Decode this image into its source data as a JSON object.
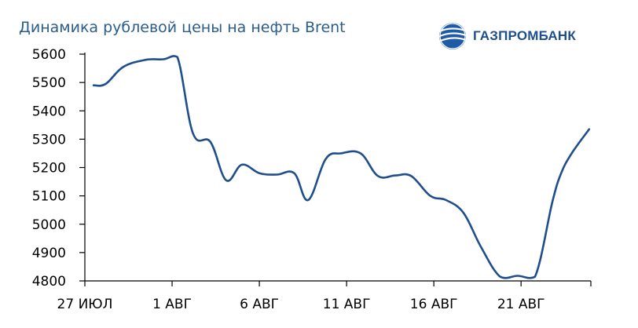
{
  "header": {
    "title": "Динамика рублевой цены на нефть Brent"
  },
  "brand": {
    "name": "ГАЗПРОМБАНК",
    "logo_icon": "gazprombank-logo-icon",
    "color": "#1f4e8c"
  },
  "colors": {
    "title": "#2a5d8a",
    "line": "#1f4e8c",
    "axis": "#000000"
  },
  "chart_data": {
    "type": "line",
    "title": "Динамика рублевой цены на нефть Brent",
    "xlabel": "",
    "ylabel": "",
    "xlim": [
      0,
      29
    ],
    "ylim": [
      4800,
      5600
    ],
    "yticks": [
      4800,
      4900,
      5000,
      5100,
      5200,
      5300,
      5400,
      5500,
      5600
    ],
    "xticks": [
      {
        "x": 0,
        "label": "27 ИЮЛ"
      },
      {
        "x": 5,
        "label": "1 АВГ"
      },
      {
        "x": 10,
        "label": "6 АВГ"
      },
      {
        "x": 15,
        "label": "11 АВГ"
      },
      {
        "x": 20,
        "label": "16 АВГ"
      },
      {
        "x": 25,
        "label": "21 АВГ"
      }
    ],
    "grid": false,
    "legend": "none",
    "series": [
      {
        "x": [
          0.5,
          1.2,
          2.2,
          3.5,
          4.5,
          5.3,
          6.2,
          7.2,
          8.1,
          9.0,
          10.0,
          11.0,
          12.0,
          12.8,
          13.8,
          14.7,
          15.8,
          16.8,
          17.8,
          18.7,
          19.8,
          20.7,
          21.7,
          22.7,
          23.8,
          24.8,
          25.8,
          26.8,
          27.3,
          27.9,
          28.9
        ],
        "y": [
          5490,
          5495,
          5555,
          5580,
          5582,
          5590,
          5320,
          5290,
          5155,
          5210,
          5180,
          5175,
          5180,
          5085,
          5230,
          5250,
          5250,
          5170,
          5172,
          5170,
          5100,
          5085,
          5040,
          4920,
          4815,
          4818,
          4815,
          5080,
          5180,
          5250,
          5335
        ]
      }
    ]
  }
}
